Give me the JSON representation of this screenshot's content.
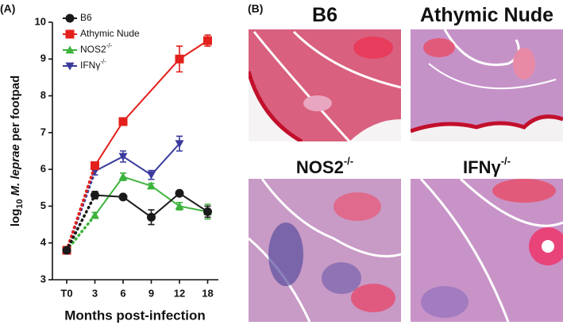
{
  "panel_a_label": "(A)",
  "panel_b_label": "(B)",
  "chart_data": {
    "type": "line",
    "ylabel": [
      "log",
      "10",
      "M. leprae",
      "per footpad"
    ],
    "xlabel": "Months post-infection",
    "categories": [
      "T0",
      "3",
      "6",
      "9",
      "12",
      "18"
    ],
    "ylim": [
      3,
      10
    ],
    "yticks": [
      3,
      4,
      5,
      6,
      7,
      8,
      9,
      10
    ],
    "series": [
      {
        "name": "B6",
        "color": "#1a1a1a",
        "marker": "circle",
        "values": [
          3.8,
          5.3,
          5.25,
          4.7,
          5.35,
          4.85
        ],
        "errors": [
          null,
          0.1,
          0.05,
          0.2,
          0.06,
          0.15
        ]
      },
      {
        "name": "Athymic Nude",
        "color": "#e3201b",
        "marker": "square",
        "values": [
          3.8,
          6.1,
          7.3,
          null,
          9.0,
          9.5
        ],
        "errors": [
          null,
          0.1,
          0.1,
          null,
          0.35,
          0.15
        ]
      },
      {
        "name": "NOS2",
        "superscript": "-/-",
        "color": "#3cb33c",
        "marker": "triangle-up",
        "values": [
          3.8,
          4.75,
          5.8,
          5.55,
          5.0,
          4.85
        ],
        "errors": [
          null,
          0.08,
          0.1,
          0.07,
          0.1,
          0.2
        ]
      },
      {
        "name": "IFNγ",
        "superscript": "-/-",
        "color": "#3a3a9e",
        "marker": "triangle-down",
        "values": [
          3.8,
          5.95,
          6.35,
          5.85,
          6.7,
          null
        ],
        "errors": [
          null,
          0.1,
          0.15,
          0.12,
          0.2,
          null
        ]
      }
    ]
  },
  "images": [
    {
      "title": "B6",
      "color": "#111111"
    },
    {
      "title": "Athymic Nude",
      "color": "#e3201b"
    },
    {
      "title": "NOS2",
      "superscript": "-/-",
      "color": "#3cb33c"
    },
    {
      "title": "IFNγ",
      "superscript": "-/-",
      "color": "#3a3a9e"
    }
  ]
}
